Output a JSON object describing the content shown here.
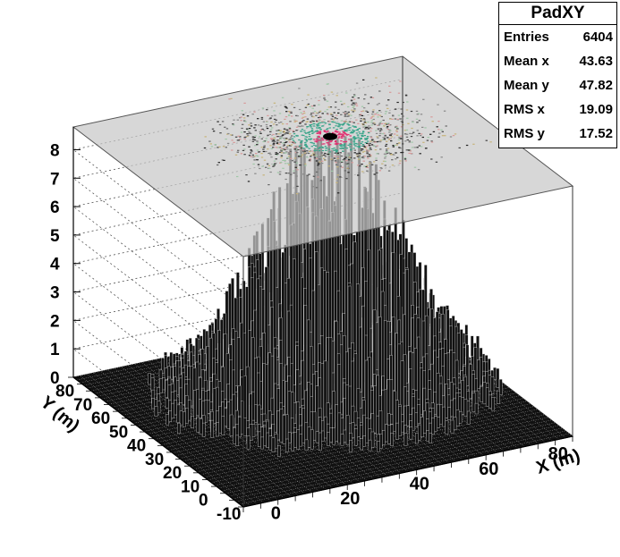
{
  "chart_data": {
    "type": "lego3d",
    "title": "",
    "x_axis": {
      "label": "X (m)",
      "ticks": [
        "0",
        "20",
        "40",
        "60",
        "80"
      ],
      "range": [
        -10,
        85
      ]
    },
    "y_axis": {
      "label": "Y (m)",
      "ticks": [
        "-10",
        "0",
        "10",
        "20",
        "30",
        "40",
        "50",
        "60",
        "70",
        "80"
      ],
      "range": [
        -10,
        85
      ]
    },
    "z_axis": {
      "ticks": [
        "0",
        "1",
        "2",
        "3",
        "4",
        "5",
        "6",
        "7",
        "8"
      ],
      "range": [
        0,
        8.8
      ]
    },
    "grid": true,
    "projection_plane": "top colored scatter projection of XY distribution",
    "peak": {
      "x": 45,
      "y": 48,
      "z": 8.5
    },
    "spread": {
      "x": 19.09,
      "y": 17.52
    }
  },
  "stats": {
    "name": "PadXY",
    "rows": [
      {
        "label": "Entries",
        "value": "6404"
      },
      {
        "label": "Mean x",
        "value": "43.63"
      },
      {
        "label": "Mean y",
        "value": "47.82"
      },
      {
        "label": "RMS x",
        "value": "19.09"
      },
      {
        "label": "RMS y",
        "value": "17.52"
      }
    ]
  }
}
